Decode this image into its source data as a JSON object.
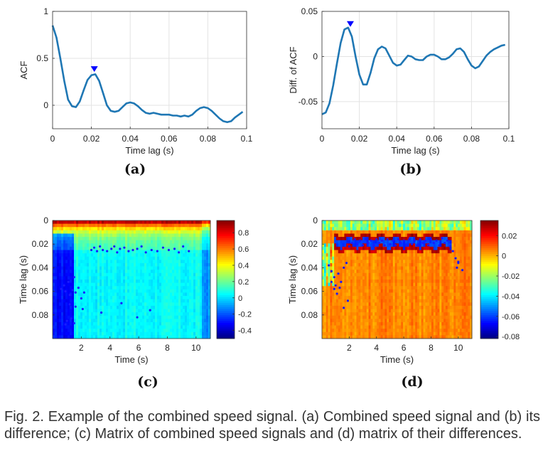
{
  "figure": {
    "caption": "Fig. 2. Example of the combined speed signal. (a) Combined speed signal and (b) its difference; (c) Matrix of combined speed signals and (d) matrix of their differences."
  },
  "chart_data": [
    {
      "id": "a",
      "panel_label": "(a)",
      "type": "line",
      "xlabel": "Time lag (s)",
      "ylabel": "ACF",
      "xlim": [
        0,
        0.1
      ],
      "ylim": [
        -0.25,
        1.0
      ],
      "xticks": [
        0,
        0.02,
        0.04,
        0.06,
        0.08,
        0.1
      ],
      "xtick_labels": [
        "0",
        "0.02",
        "0.04",
        "0.06",
        "0.08",
        "0.1"
      ],
      "yticks": [
        0,
        0.5,
        1
      ],
      "ytick_labels": [
        "0",
        "0.5",
        "1"
      ],
      "grid": true,
      "color": "#1f77b4",
      "marker": {
        "shape": "triangle-down",
        "color": "#0000ff",
        "x": 0.0215,
        "y": 0.385
      },
      "x": [
        0,
        0.002,
        0.004,
        0.006,
        0.008,
        0.01,
        0.012,
        0.014,
        0.016,
        0.018,
        0.02,
        0.022,
        0.024,
        0.026,
        0.028,
        0.03,
        0.032,
        0.034,
        0.036,
        0.038,
        0.04,
        0.042,
        0.044,
        0.046,
        0.048,
        0.05,
        0.052,
        0.054,
        0.056,
        0.058,
        0.06,
        0.062,
        0.064,
        0.066,
        0.068,
        0.07,
        0.072,
        0.074,
        0.076,
        0.078,
        0.08,
        0.082,
        0.084,
        0.086,
        0.088,
        0.09,
        0.092,
        0.094,
        0.096,
        0.098
      ],
      "y": [
        0.85,
        0.72,
        0.5,
        0.26,
        0.06,
        -0.01,
        -0.02,
        0.04,
        0.16,
        0.27,
        0.32,
        0.33,
        0.26,
        0.13,
        0.0,
        -0.06,
        -0.07,
        -0.06,
        -0.02,
        0.02,
        0.03,
        0.02,
        -0.01,
        -0.05,
        -0.08,
        -0.09,
        -0.08,
        -0.09,
        -0.1,
        -0.1,
        -0.1,
        -0.11,
        -0.11,
        -0.12,
        -0.11,
        -0.12,
        -0.1,
        -0.06,
        -0.03,
        -0.02,
        -0.03,
        -0.06,
        -0.1,
        -0.14,
        -0.17,
        -0.18,
        -0.17,
        -0.13,
        -0.1,
        -0.07
      ]
    },
    {
      "id": "b",
      "panel_label": "(b)",
      "type": "line",
      "xlabel": "Time lag (s)",
      "ylabel": "Diff. of ACF",
      "xlim": [
        0,
        0.1
      ],
      "ylim": [
        -0.08,
        0.05
      ],
      "xticks": [
        0,
        0.02,
        0.04,
        0.06,
        0.08,
        0.1
      ],
      "xtick_labels": [
        "0",
        "0.02",
        "0.04",
        "0.06",
        "0.08",
        "0.1"
      ],
      "yticks": [
        -0.05,
        0,
        0.05
      ],
      "ytick_labels": [
        "-0.05",
        "0",
        "0.05"
      ],
      "grid": true,
      "color": "#1f77b4",
      "marker": {
        "shape": "triangle-down",
        "color": "#0000ff",
        "x": 0.0152,
        "y": 0.036
      },
      "x": [
        0,
        0.002,
        0.004,
        0.006,
        0.008,
        0.01,
        0.012,
        0.014,
        0.016,
        0.018,
        0.02,
        0.022,
        0.024,
        0.026,
        0.028,
        0.03,
        0.032,
        0.034,
        0.036,
        0.038,
        0.04,
        0.042,
        0.044,
        0.046,
        0.048,
        0.05,
        0.052,
        0.054,
        0.056,
        0.058,
        0.06,
        0.062,
        0.064,
        0.066,
        0.068,
        0.07,
        0.072,
        0.074,
        0.076,
        0.078,
        0.08,
        0.082,
        0.084,
        0.086,
        0.088,
        0.09,
        0.092,
        0.094,
        0.096,
        0.098
      ],
      "y": [
        -0.064,
        -0.062,
        -0.052,
        -0.032,
        -0.008,
        0.015,
        0.03,
        0.032,
        0.022,
        0.0,
        -0.02,
        -0.031,
        -0.031,
        -0.018,
        -0.002,
        0.008,
        0.011,
        0.009,
        0.001,
        -0.007,
        -0.01,
        -0.009,
        -0.004,
        0.001,
        0.0,
        -0.003,
        -0.004,
        -0.004,
        0.0,
        0.002,
        0.002,
        0.0,
        -0.003,
        -0.003,
        -0.001,
        0.003,
        0.008,
        0.009,
        0.005,
        -0.003,
        -0.01,
        -0.013,
        -0.011,
        -0.005,
        0.001,
        0.005,
        0.008,
        0.01,
        0.012,
        0.013
      ]
    },
    {
      "id": "c",
      "panel_label": "(c)",
      "type": "heatmap",
      "xlabel": "Time (s)",
      "ylabel": "Time lag (s)",
      "xlim": [
        0,
        11
      ],
      "ylim": [
        0,
        0.1
      ],
      "y_reversed": true,
      "xticks": [
        2,
        4,
        6,
        8,
        10
      ],
      "xtick_labels": [
        "2",
        "4",
        "6",
        "8",
        "10"
      ],
      "yticks": [
        0,
        0.02,
        0.04,
        0.06,
        0.08
      ],
      "ytick_labels": [
        "0",
        "0.02",
        "0.04",
        "0.06",
        "0.08"
      ],
      "colorbar": {
        "ticks": [
          0.8,
          0.6,
          0.4,
          0.2,
          0,
          -0.2,
          -0.4
        ],
        "tick_labels": [
          "0.8",
          "0.6",
          "0.4",
          "0.2",
          "0",
          "-0.2",
          "-0.4"
        ],
        "range": [
          -0.5,
          0.95
        ]
      },
      "colormap": "jet",
      "peak_color": "#1a1aff",
      "peaks": {
        "x": [
          0.6,
          0.8,
          0.9,
          1.1,
          1.2,
          1.4,
          1.5,
          1.6,
          1.8,
          2.0,
          2.2,
          0.9,
          1.0,
          1.3,
          1.5,
          2.7,
          2.9,
          3.1,
          3.3,
          3.5,
          3.8,
          4.1,
          4.3,
          4.5,
          4.7,
          5.0,
          5.3,
          5.6,
          5.9,
          6.2,
          6.5,
          6.9,
          7.3,
          7.7,
          8.1,
          8.5,
          8.8,
          9.1,
          9.5,
          1.2,
          1.6,
          2.1,
          3.4,
          4.8,
          5.9,
          6.8
        ],
        "y": [
          0.058,
          0.055,
          0.06,
          0.052,
          0.063,
          0.059,
          0.048,
          0.061,
          0.057,
          0.066,
          0.061,
          0.088,
          0.085,
          0.083,
          0.087,
          0.025,
          0.023,
          0.026,
          0.022,
          0.025,
          0.026,
          0.024,
          0.022,
          0.027,
          0.024,
          0.023,
          0.026,
          0.025,
          0.024,
          0.022,
          0.027,
          0.025,
          0.026,
          0.023,
          0.025,
          0.024,
          0.027,
          0.022,
          0.026,
          0.071,
          0.073,
          0.075,
          0.078,
          0.07,
          0.082,
          0.076
        ]
      }
    },
    {
      "id": "d",
      "panel_label": "(d)",
      "type": "heatmap",
      "xlabel": "Time (s)",
      "ylabel": "Time lag (s)",
      "xlim": [
        0,
        11
      ],
      "ylim": [
        0,
        0.1
      ],
      "y_reversed": true,
      "xticks": [
        2,
        4,
        6,
        8,
        10
      ],
      "xtick_labels": [
        "2",
        "4",
        "6",
        "8",
        "10"
      ],
      "yticks": [
        0,
        0.02,
        0.04,
        0.06,
        0.08
      ],
      "ytick_labels": [
        "0",
        "0.02",
        "0.04",
        "0.06",
        "0.08"
      ],
      "colorbar": {
        "ticks": [
          0.02,
          0,
          -0.02,
          -0.04,
          -0.06,
          -0.08
        ],
        "tick_labels": [
          "0.02",
          "0",
          "-0.02",
          "-0.04",
          "-0.06",
          "-0.08"
        ],
        "range": [
          -0.082,
          0.035
        ]
      },
      "colormap": "jet",
      "peak_color": "#1a1aff",
      "peaks": {
        "x": [
          0.5,
          0.7,
          0.9,
          1.0,
          1.2,
          1.4,
          1.6,
          1.8,
          2.0,
          2.2,
          2.4,
          2.6,
          2.8,
          3.0,
          3.2,
          3.4,
          3.6,
          3.8,
          4.0,
          4.2,
          4.4,
          4.6,
          4.8,
          5.0,
          5.2,
          5.4,
          5.6,
          5.8,
          6.0,
          6.2,
          6.4,
          6.6,
          6.8,
          7.0,
          7.2,
          7.4,
          7.6,
          7.8,
          8.0,
          8.2,
          8.4,
          8.6,
          8.8,
          9.0,
          9.2,
          9.4,
          9.6,
          9.8,
          10.0,
          0.7,
          0.9,
          1.1,
          1.3,
          1.6,
          1.9,
          9.9,
          10.0,
          10.3
        ],
        "y": [
          0.038,
          0.043,
          0.048,
          0.055,
          0.045,
          0.052,
          0.04,
          0.036,
          0.022,
          0.019,
          0.016,
          0.02,
          0.017,
          0.021,
          0.016,
          0.019,
          0.017,
          0.021,
          0.016,
          0.019,
          0.017,
          0.021,
          0.016,
          0.02,
          0.017,
          0.021,
          0.016,
          0.019,
          0.017,
          0.021,
          0.016,
          0.02,
          0.017,
          0.021,
          0.016,
          0.019,
          0.017,
          0.021,
          0.016,
          0.019,
          0.017,
          0.021,
          0.015,
          0.019,
          0.017,
          0.022,
          0.026,
          0.032,
          0.035,
          0.052,
          0.058,
          0.062,
          0.057,
          0.074,
          0.068,
          0.04,
          0.036,
          0.042
        ]
      }
    }
  ]
}
